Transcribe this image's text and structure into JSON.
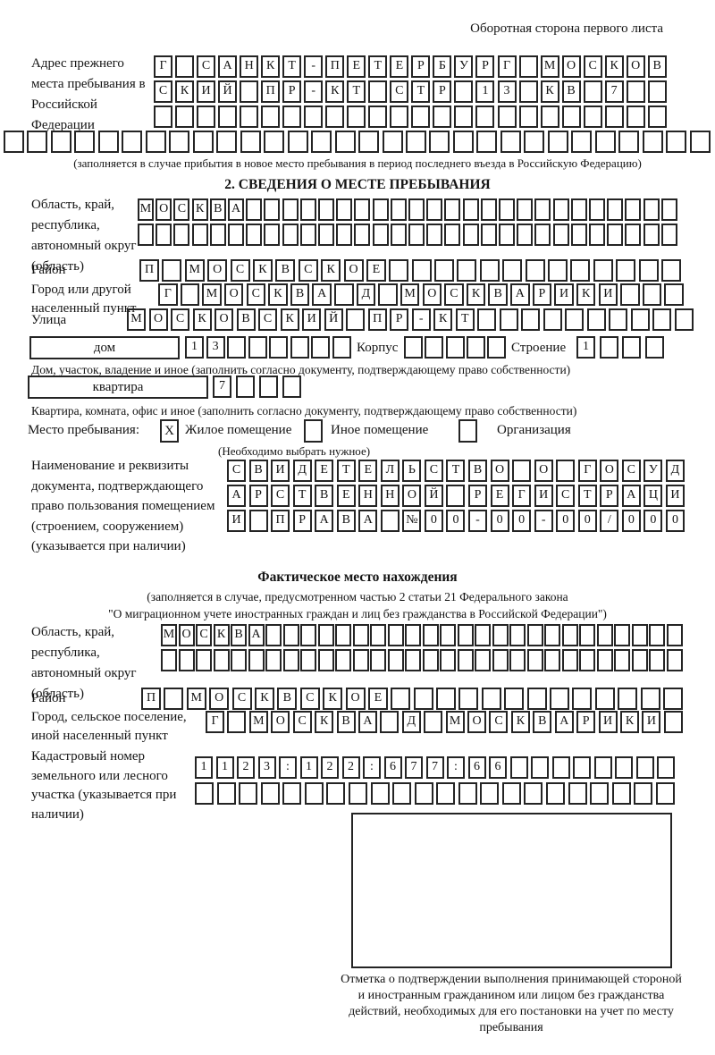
{
  "page": {
    "title": "Оборотная сторона первого листа"
  },
  "section1": {
    "label": "Адрес прежнего места пребывания в Российской Федерации",
    "rows": [
      {
        "chars": "Г САНКТ-ПЕТЕРБУРГ МОСКОВ",
        "cells": 24
      },
      {
        "chars": "СКИЙ ПР-КТ СТР 13 КВ 7",
        "cells": 24
      },
      {
        "chars": "",
        "cells": 24
      },
      {
        "chars": "",
        "cells": 30
      }
    ],
    "note": "(заполняется в случае прибытия в новое место пребывания в период последнего въезда в Российскую Федерацию)"
  },
  "section2": {
    "heading": "2. СВЕДЕНИЯ О МЕСТЕ ПРЕБЫВАНИЯ",
    "region": {
      "label": "Область, край, республика, автономный округ (область)",
      "rows": [
        {
          "chars": "МОСКВА",
          "cells": 30
        },
        {
          "chars": "",
          "cells": 30
        }
      ]
    },
    "district": {
      "label": "Район",
      "row": {
        "chars": "П МОСКВСКОЕ",
        "cells": 24
      }
    },
    "city": {
      "label": "Город или другой населенный пункт",
      "row": {
        "chars": "Г МОСКВА Д МОСКВАРИКИ",
        "cells": 24
      }
    },
    "street": {
      "label": "Улица",
      "row": {
        "chars": "МОСКОВСКИЙ ПР-КТ",
        "cells": 26
      }
    },
    "house": {
      "box_label": "дом",
      "row": {
        "chars": "13",
        "cells": 8
      },
      "korpus_label": "Корпус",
      "korpus_row": {
        "chars": "",
        "cells": 5
      },
      "stroenie_label": "Строение",
      "stroenie_row": {
        "chars": "1",
        "cells": 4
      },
      "note": "Дом, участок, владение и иное (заполнить согласно документу, подтверждающему право собственности)"
    },
    "apartment": {
      "box_label": "квартира",
      "row": {
        "chars": "7",
        "cells": 4
      },
      "note": "Квартира, комната, офис и иное (заполнить согласно документу, подтверждающему право собственности)"
    },
    "stay_type": {
      "label": "Место пребывания:",
      "options": [
        {
          "label": "Жилое помещение",
          "checked": "X"
        },
        {
          "label": "Иное помещение",
          "checked": ""
        },
        {
          "label": "Организация",
          "checked": ""
        }
      ],
      "note": "(Необходимо выбрать нужное)"
    },
    "document": {
      "label": "Наименование и реквизиты документа, подтверждающего право пользования помещением (строением, сооружением) (указывается при наличии)",
      "rows": [
        {
          "chars": "СВИДЕТЕЛЬСТВО О ГОСУД",
          "cells": 21
        },
        {
          "chars": "АРСТВЕННОЙ РЕГИСТРАЦИ",
          "cells": 21
        },
        {
          "chars": "И ПРАВА №00-00-00/000",
          "cells": 21
        }
      ]
    }
  },
  "actual_location": {
    "heading": "Фактическое место нахождения",
    "note_line1": "(заполняется в случае, предусмотренном частью 2 статьи 21 Федерального закона",
    "note_line2": "\"О миграционном учете иностранных граждан и лиц без гражданства в Российской Федерации\")",
    "region": {
      "label": "Область, край, республика, автономный округ (область)",
      "rows": [
        {
          "chars": "МОСКВА",
          "cells": 30
        },
        {
          "chars": "",
          "cells": 30
        }
      ]
    },
    "district": {
      "label": "Район",
      "row": {
        "chars": "П МОСКВСКОЕ",
        "cells": 24
      }
    },
    "city": {
      "label": "Город, сельское поселение, иной населенный пункт",
      "row": {
        "chars": "Г МОСКВА Д МОСКВАРИКИ",
        "cells": 22
      }
    },
    "cadastral": {
      "label": "Кадастровый номер земельного или лесного участка (указывается при наличии)",
      "rows": [
        {
          "chars": "1123:122:677:66",
          "cells": 23
        },
        {
          "chars": "",
          "cells": 22
        }
      ]
    },
    "stamp_note": "Отметка о подтверждении выполнения принимающей стороной и иностранным гражданином или лицом без гражданства действий, необходимых для его постановки на учет по месту пребывания"
  }
}
